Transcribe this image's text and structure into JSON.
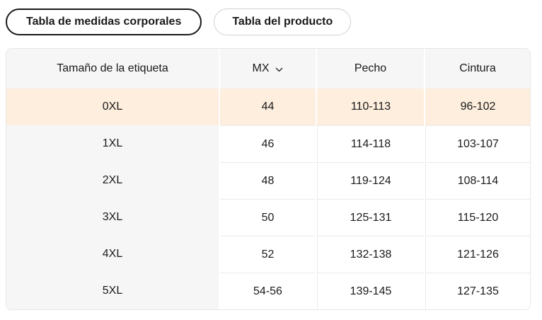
{
  "tabs": {
    "body_measurements": {
      "label": "Tabla de medidas corporales",
      "active": true
    },
    "product": {
      "label": "Tabla del producto",
      "active": false
    }
  },
  "table": {
    "headers": {
      "size_label": "Tamaño de la etiqueta",
      "size_system": "MX",
      "chest": "Pecho",
      "waist": "Cintura"
    },
    "rows": [
      {
        "size": "0XL",
        "mx": "44",
        "pecho": "110-113",
        "cintura": "96-102",
        "highlighted": true
      },
      {
        "size": "1XL",
        "mx": "46",
        "pecho": "114-118",
        "cintura": "103-107",
        "highlighted": false
      },
      {
        "size": "2XL",
        "mx": "48",
        "pecho": "119-124",
        "cintura": "108-114",
        "highlighted": false
      },
      {
        "size": "3XL",
        "mx": "50",
        "pecho": "125-131",
        "cintura": "115-120",
        "highlighted": false
      },
      {
        "size": "4XL",
        "mx": "52",
        "pecho": "132-138",
        "cintura": "121-126",
        "highlighted": false
      },
      {
        "size": "5XL",
        "mx": "54-56",
        "pecho": "139-145",
        "cintura": "127-135",
        "highlighted": false
      }
    ]
  },
  "icons": {
    "size_system_dropdown": "chevron-down-icon"
  },
  "colors": {
    "highlight_row_bg": "#fdeedd",
    "header_bg": "#f6f6f6",
    "text": "#1a1a1a",
    "active_tab_border": "#1a1a1a",
    "inactive_tab_border": "#cfcfcf",
    "table_border": "#e7e7e7",
    "row_separator": "#ebebeb"
  }
}
